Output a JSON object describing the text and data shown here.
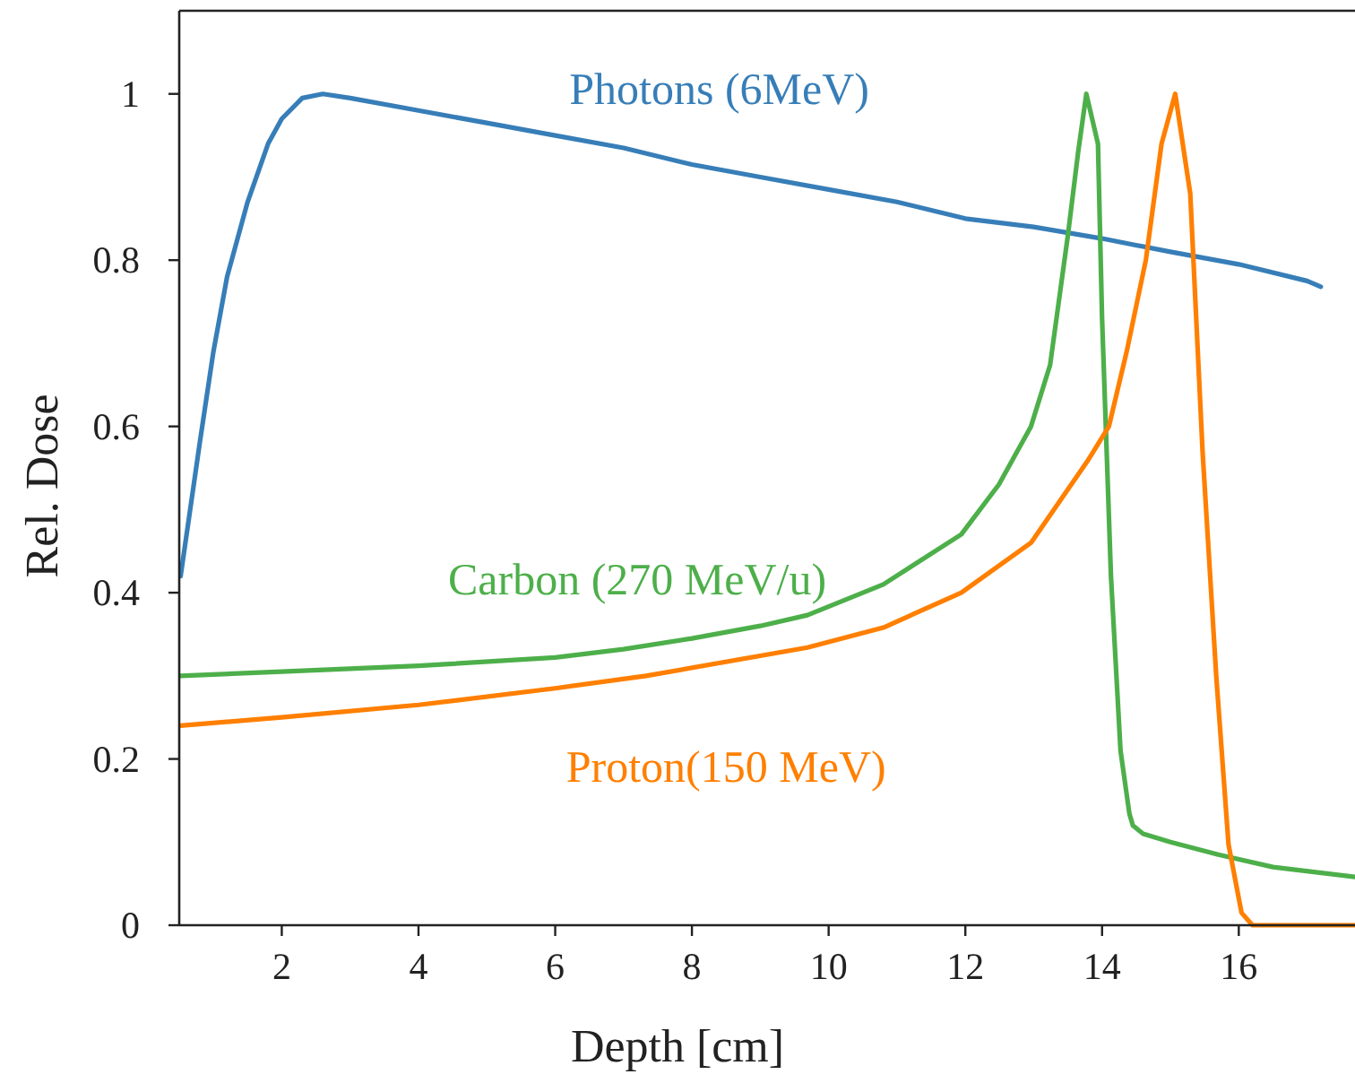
{
  "chart_data": {
    "type": "line",
    "xlabel": "Depth [cm]",
    "ylabel": "Rel. Dose",
    "xlim": [
      0.5,
      17.7
    ],
    "ylim": [
      0,
      1.1
    ],
    "xticks": [
      2,
      4,
      6,
      8,
      10,
      12,
      14,
      16
    ],
    "yticks": [
      0,
      0.2,
      0.4,
      0.6,
      0.8,
      1
    ],
    "grid": false,
    "marker": "none",
    "line_style": "solid",
    "series": [
      {
        "name": "Photons (6MeV)",
        "color": "#377eb8",
        "x": [
          0.52,
          0.8,
          1.0,
          1.2,
          1.5,
          1.8,
          2.0,
          2.3,
          2.6,
          3,
          4,
          5,
          6,
          7,
          8,
          9,
          10,
          11,
          12,
          13,
          14,
          15,
          16,
          17,
          17.2
        ],
        "values": [
          0.42,
          0.58,
          0.69,
          0.78,
          0.87,
          0.94,
          0.97,
          0.995,
          1.0,
          0.995,
          0.98,
          0.965,
          0.95,
          0.935,
          0.915,
          0.9,
          0.885,
          0.87,
          0.85,
          0.84,
          0.826,
          0.81,
          0.795,
          0.775,
          0.768
        ]
      },
      {
        "name": "Carbon (270 MeV/u)",
        "color": "#4daf4a",
        "x": [
          0.52,
          2,
          4,
          6,
          7,
          8,
          9,
          9.69,
          10.8,
          11.94,
          12.49,
          12.96,
          13.24,
          13.5,
          13.65,
          13.77,
          13.94,
          14.0,
          14.13,
          14.27,
          14.4,
          14.45,
          14.6,
          15,
          15.7,
          16.5,
          17.7
        ],
        "values": [
          0.3,
          0.305,
          0.312,
          0.322,
          0.332,
          0.345,
          0.36,
          0.373,
          0.41,
          0.47,
          0.53,
          0.6,
          0.674,
          0.83,
          0.93,
          1.0,
          0.94,
          0.73,
          0.42,
          0.21,
          0.134,
          0.12,
          0.11,
          0.1,
          0.085,
          0.07,
          0.058
        ]
      },
      {
        "name": "Proton(150 MeV)",
        "color": "#ff7f00",
        "x": [
          0.52,
          2,
          4,
          6,
          7.33,
          9.69,
          10.8,
          11.94,
          12.96,
          13.8,
          14.1,
          14.36,
          14.64,
          14.87,
          15.07,
          15.29,
          15.47,
          15.67,
          15.85,
          16.04,
          16.2,
          17.7
        ],
        "values": [
          0.24,
          0.25,
          0.265,
          0.285,
          0.3,
          0.334,
          0.358,
          0.4,
          0.46,
          0.56,
          0.6,
          0.69,
          0.8,
          0.94,
          1.0,
          0.88,
          0.57,
          0.3,
          0.097,
          0.015,
          0,
          0
        ]
      }
    ]
  }
}
